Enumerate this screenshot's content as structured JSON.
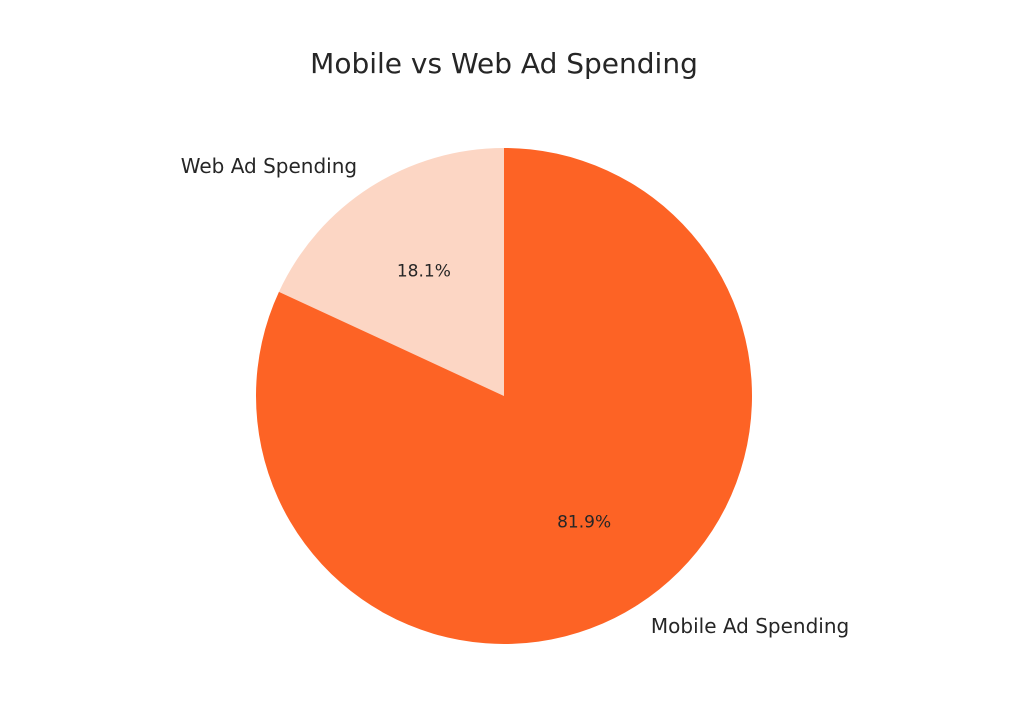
{
  "chart_data": {
    "type": "pie",
    "title": "Mobile vs Web Ad Spending",
    "start_angle": "top, counter-clockwise",
    "legend": "none",
    "slices": [
      {
        "label": "Web Ad Spending",
        "value": 18.1,
        "pct_label": "18.1%",
        "color": "#fcd6c4"
      },
      {
        "label": "Mobile Ad Spending",
        "value": 81.9,
        "pct_label": "81.9%",
        "color": "#fd6325"
      }
    ]
  }
}
